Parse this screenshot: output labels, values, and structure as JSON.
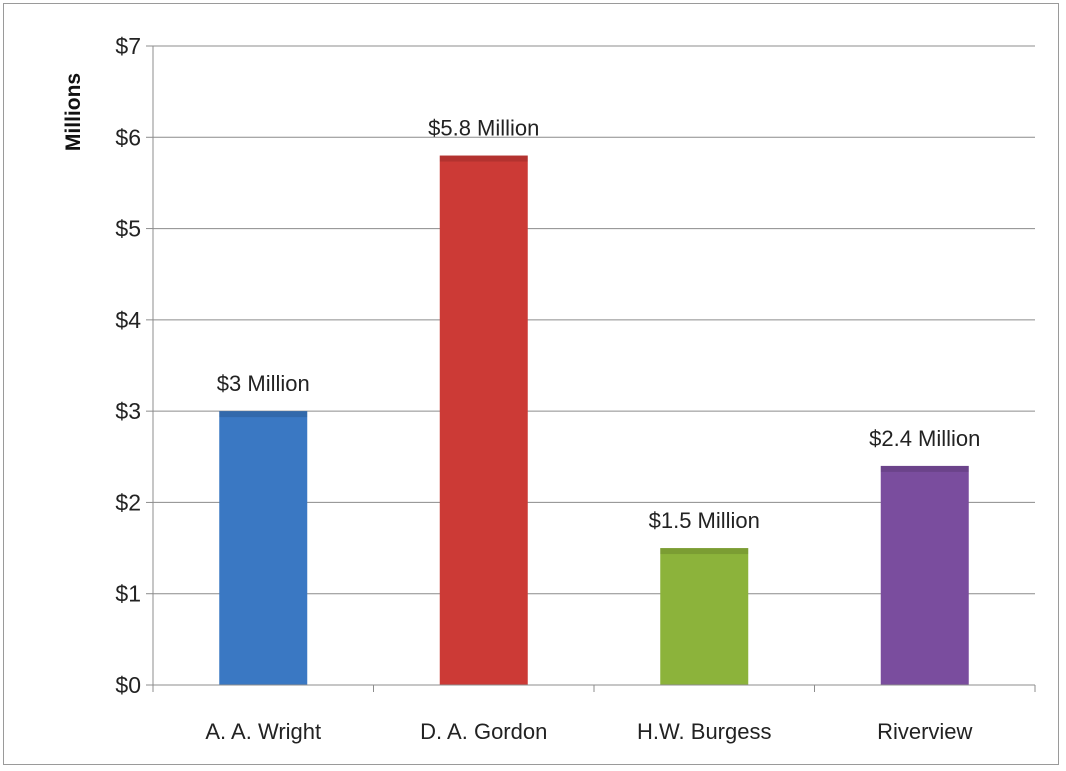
{
  "chart_data": {
    "type": "bar",
    "title": "",
    "xlabel": "",
    "ylabel": "Millions",
    "ylim": [
      0,
      7
    ],
    "y_ticks": [
      0,
      1,
      2,
      3,
      4,
      5,
      6,
      7
    ],
    "y_tick_labels": [
      "$0",
      "$1",
      "$2",
      "$3",
      "$4",
      "$5",
      "$6",
      "$7"
    ],
    "categories": [
      "A. A. Wright",
      "D. A. Gordon",
      "H.W. Burgess",
      "Riverview"
    ],
    "values": [
      3,
      5.8,
      1.5,
      2.4
    ],
    "data_labels": [
      "$3 Million",
      "$5.8 Million",
      "$1.5 Million",
      "$2.4 Million"
    ],
    "colors": [
      "#3a78c3",
      "#cc3a36",
      "#8cb33b",
      "#7a4d9e"
    ],
    "grid": true,
    "legend": "none"
  }
}
